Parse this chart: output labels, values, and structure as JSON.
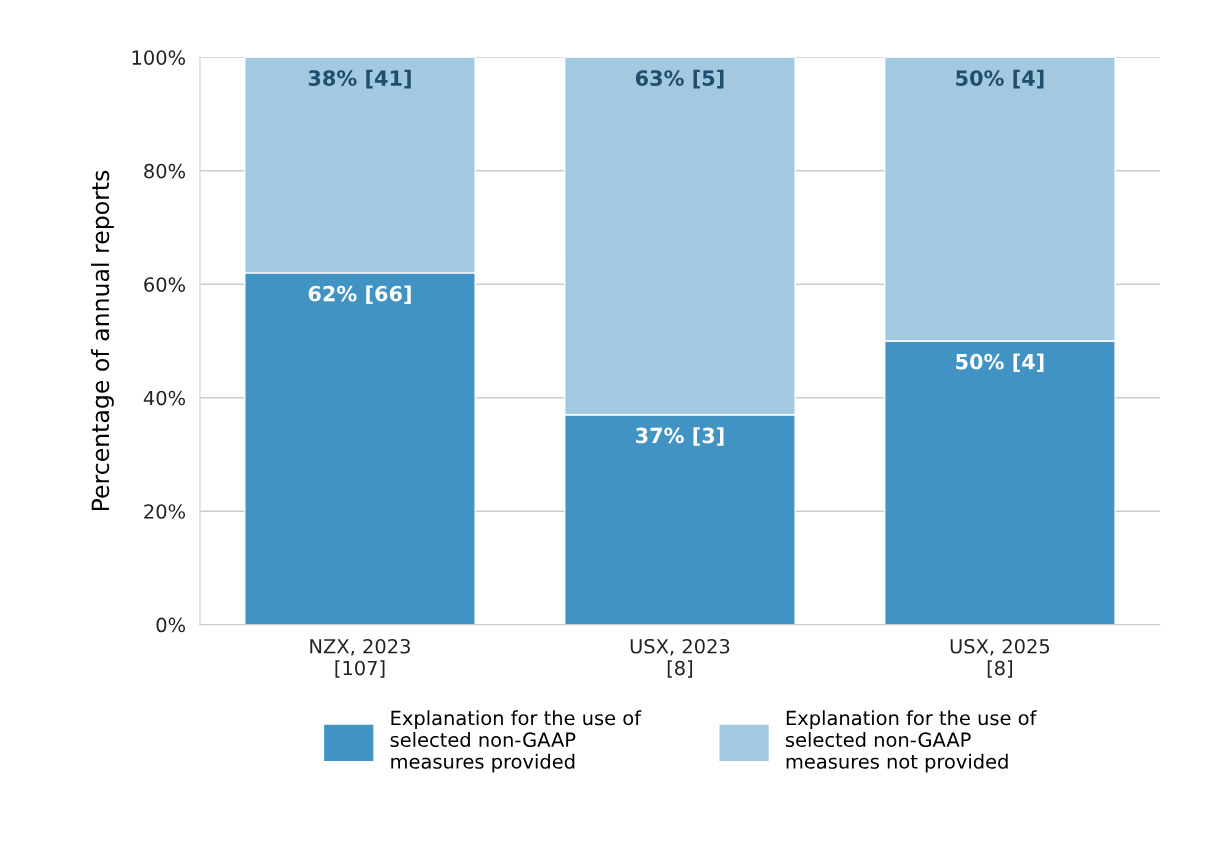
{
  "chart_data": {
    "type": "bar",
    "stacked": true,
    "ylabel": "Percentage of annual reports",
    "categories": [
      "NZX, 2023\n[107]",
      "USX, 2023\n[8]",
      "USX, 2025\n[8]"
    ],
    "series": [
      {
        "name": "Explanation for the use of\nselected non-GAAP\nmeasures provided",
        "color": "#4193c4",
        "values": [
          62,
          37,
          50
        ],
        "value_labels": [
          "62% [66]",
          "37% [3]",
          "50% [4]"
        ]
      },
      {
        "name": "Explanation for the use of\nselected non-GAAP\nmeasures not provided",
        "color": "#a2c9df",
        "values": [
          38,
          63,
          50
        ],
        "value_labels": [
          "38% [41]",
          "63% [5]",
          "50% [4]"
        ]
      }
    ],
    "ylim": [
      0,
      100
    ],
    "yticks": [
      {
        "value": 0,
        "label": "0%"
      },
      {
        "value": 20,
        "label": "20%"
      },
      {
        "value": 40,
        "label": "40%"
      },
      {
        "value": 60,
        "label": "60%"
      },
      {
        "value": 80,
        "label": "80%"
      },
      {
        "value": 100,
        "label": "100%"
      }
    ],
    "grid": "y",
    "legend": "bottom"
  }
}
